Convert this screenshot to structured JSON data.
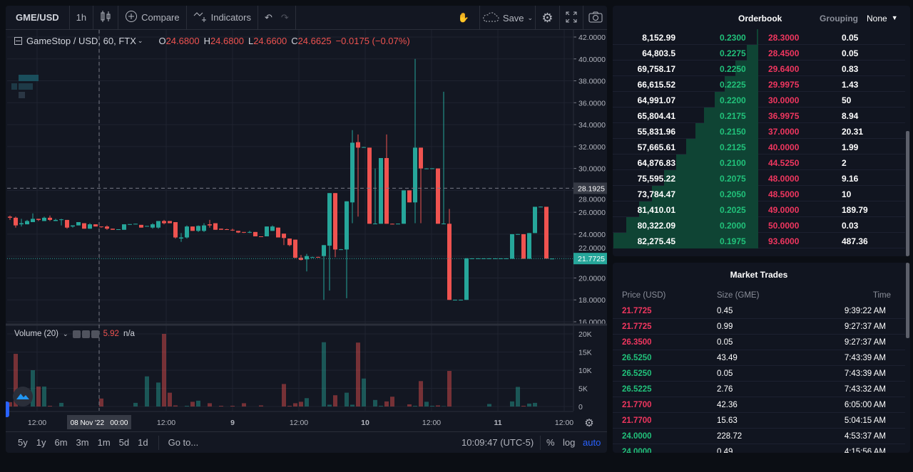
{
  "toolbar": {
    "symbol": "GME/USD",
    "interval": "1h",
    "compare": "Compare",
    "indicators": "Indicators",
    "save": "Save"
  },
  "legend": {
    "title": "GameStop / USD, 60, FTX",
    "o_label": "O",
    "o": "24.6800",
    "h_label": "H",
    "h": "24.6800",
    "l_label": "L",
    "l": "24.6600",
    "c_label": "C",
    "c": "24.6625",
    "change": "−0.0175 (−0.07%)"
  },
  "volume_legend": {
    "title": "Volume (20)",
    "value": "5.92",
    "extra": "n/a"
  },
  "colors": {
    "up": "#26a69a",
    "down": "#ef5350",
    "bid": "#21c17a",
    "ask": "#f0365f",
    "accent": "#2962ff"
  },
  "price_axis": {
    "ticks": [
      "42.0000",
      "40.0000",
      "38.0000",
      "36.0000",
      "34.0000",
      "32.0000",
      "30.0000",
      "28.0000",
      "26.0000",
      "24.0000",
      "22.0000",
      "20.0000",
      "18.0000",
      "16.0000"
    ],
    "crosshair": "28.1925",
    "last": "21.7725"
  },
  "volume_axis": {
    "ticks": [
      "20K",
      "15K",
      "10K",
      "5K",
      "0"
    ]
  },
  "time_axis": {
    "labels": [
      "12:00",
      "12:00",
      "9",
      "12:00",
      "10",
      "12:00",
      "11",
      "12:00"
    ],
    "crosshair": "08 Nov '22   00:00"
  },
  "chart": {
    "candles": [
      [
        25.6,
        25.7,
        25.3,
        25.5,
        1200
      ],
      [
        25.5,
        25.6,
        24.6,
        24.8,
        14500
      ],
      [
        24.9,
        25.4,
        24.7,
        25.0,
        0
      ],
      [
        24.9,
        25.3,
        24.9,
        25.2,
        0
      ],
      [
        25.1,
        25.9,
        25.1,
        25.4,
        10000
      ],
      [
        25.4,
        25.4,
        25.2,
        25.3,
        5500
      ],
      [
        25.2,
        25.6,
        25.2,
        25.5,
        5500
      ],
      [
        25.5,
        25.7,
        25.2,
        25.3,
        200
      ],
      [
        25.2,
        25.4,
        25.2,
        25.3,
        0
      ],
      [
        25.3,
        25.4,
        24.8,
        25.35,
        1000
      ],
      [
        25.3,
        25.3,
        24.5,
        24.6,
        0
      ],
      [
        24.7,
        24.8,
        24.6,
        24.8,
        0
      ],
      [
        24.8,
        25.1,
        24.8,
        25.1,
        0
      ],
      [
        25.0,
        25.0,
        24.5,
        24.5,
        0
      ],
      [
        24.5,
        25.0,
        24.5,
        24.9,
        0
      ],
      [
        24.9,
        24.9,
        24.7,
        24.7,
        0
      ],
      [
        24.7,
        24.7,
        24.6,
        24.65,
        2200
      ],
      [
        24.7,
        24.8,
        24.4,
        24.5,
        0
      ],
      [
        24.5,
        24.5,
        24.4,
        24.4,
        0
      ],
      [
        24.4,
        24.45,
        24.4,
        24.45,
        0
      ],
      [
        24.4,
        24.9,
        24.4,
        24.9,
        0
      ],
      [
        24.9,
        24.9,
        24.85,
        24.92,
        0
      ],
      [
        24.9,
        24.95,
        24.9,
        24.95,
        1000
      ],
      [
        24.85,
        24.85,
        24.6,
        24.6,
        0
      ],
      [
        24.7,
        24.75,
        24.7,
        24.75,
        8300
      ],
      [
        24.6,
        25.0,
        24.5,
        24.9,
        0
      ],
      [
        24.6,
        25.1,
        24.5,
        25.2,
        6600
      ],
      [
        25.2,
        25.3,
        24.9,
        25.0,
        20000
      ],
      [
        25.2,
        25.2,
        25.0,
        25.0,
        3800
      ],
      [
        25.1,
        25.1,
        23.6,
        23.7,
        300
      ],
      [
        23.6,
        24.1,
        23.3,
        23.7,
        0
      ],
      [
        23.7,
        24.8,
        23.6,
        24.7,
        200
      ],
      [
        24.7,
        24.7,
        24.3,
        24.3,
        1300
      ],
      [
        24.3,
        24.8,
        24.2,
        24.75,
        1600
      ],
      [
        24.3,
        25.0,
        24.2,
        24.8,
        0
      ],
      [
        24.9,
        25.3,
        24.6,
        24.8,
        900
      ],
      [
        25.0,
        25.0,
        24.4,
        24.4,
        0
      ],
      [
        24.5,
        24.5,
        24.4,
        24.4,
        200
      ],
      [
        24.45,
        24.5,
        24.4,
        24.4,
        0
      ],
      [
        24.4,
        24.5,
        24.3,
        24.35,
        200
      ],
      [
        24.3,
        24.3,
        24.1,
        24.15,
        0
      ],
      [
        24.2,
        24.2,
        24.1,
        24.15,
        900
      ],
      [
        24.2,
        24.3,
        24.1,
        24.2,
        0
      ],
      [
        24.2,
        24.2,
        23.8,
        23.8,
        0
      ],
      [
        23.8,
        23.8,
        23.75,
        23.78,
        300
      ],
      [
        23.8,
        24.7,
        23.8,
        24.7,
        0
      ],
      [
        24.3,
        24.8,
        24.3,
        24.7,
        0
      ],
      [
        24.6,
        24.6,
        23.7,
        23.7,
        0
      ],
      [
        24.05,
        24.05,
        23.0,
        23.65,
        6200
      ],
      [
        23.6,
        23.6,
        22.9,
        23.0,
        200
      ],
      [
        23.5,
        23.5,
        21.8,
        21.85,
        900
      ],
      [
        21.85,
        22.1,
        21.6,
        21.65,
        1300
      ],
      [
        21.7,
        22.2,
        20.6,
        22.0,
        2300
      ],
      [
        21.9,
        21.95,
        21.85,
        21.9,
        0
      ],
      [
        21.92,
        21.95,
        21.88,
        21.9,
        0
      ],
      [
        22.0,
        23.0,
        18.0,
        23.0,
        17700
      ],
      [
        22.95,
        27.75,
        18.85,
        27.75,
        500
      ],
      [
        27.75,
        27.75,
        21.9,
        22.6,
        3100
      ],
      [
        22.6,
        22.65,
        22.6,
        22.62,
        0
      ],
      [
        22.6,
        27.0,
        18.15,
        27.0,
        3800
      ],
      [
        26.9,
        33.5,
        25.0,
        32.35,
        500
      ],
      [
        32.4,
        33.1,
        25.6,
        31.9,
        17600
      ],
      [
        31.95,
        31.97,
        31.9,
        31.95,
        7700
      ],
      [
        31.9,
        31.9,
        24.95,
        24.95,
        0
      ],
      [
        24.95,
        30.0,
        24.95,
        24.97,
        1800
      ],
      [
        24.95,
        30.95,
        24.95,
        30.95,
        200
      ],
      [
        30.95,
        33.1,
        24.95,
        24.95,
        1400
      ],
      [
        24.95,
        24.97,
        24.93,
        24.94,
        2700
      ],
      [
        24.95,
        24.97,
        24.93,
        24.96,
        0
      ],
      [
        24.95,
        28.0,
        24.95,
        28.0,
        0
      ],
      [
        28.0,
        28.0,
        26.9,
        26.9,
        600
      ],
      [
        26.9,
        40.0,
        25.0,
        31.9,
        200
      ],
      [
        31.9,
        31.9,
        25.0,
        30.0,
        7000
      ],
      [
        30.0,
        30.02,
        29.98,
        30.0,
        1300
      ],
      [
        30.0,
        30.02,
        29.98,
        30.01,
        200
      ],
      [
        30.0,
        30.0,
        24.95,
        24.95,
        300
      ],
      [
        24.95,
        37.0,
        24.9,
        24.97,
        100
      ],
      [
        24.95,
        26.3,
        18.0,
        18.0,
        9800
      ],
      [
        18.0,
        18.02,
        17.98,
        18.01,
        0
      ],
      [
        18.0,
        18.02,
        17.98,
        18.01,
        0
      ],
      [
        18.0,
        21.8,
        18.0,
        21.8,
        0
      ],
      [
        21.78,
        21.8,
        21.76,
        21.79,
        0
      ],
      [
        21.78,
        21.8,
        21.76,
        21.79,
        0
      ],
      [
        21.78,
        21.8,
        21.76,
        21.79,
        0
      ],
      [
        21.78,
        21.8,
        21.76,
        21.79,
        700
      ],
      [
        21.78,
        21.8,
        21.76,
        21.79,
        0
      ],
      [
        21.78,
        21.8,
        21.76,
        21.79,
        0
      ],
      [
        21.78,
        21.8,
        21.76,
        21.79,
        0
      ],
      [
        21.75,
        24.0,
        21.75,
        24.0,
        1400
      ],
      [
        24.0,
        24.02,
        23.98,
        24.01,
        5400
      ],
      [
        24.0,
        24.0,
        21.75,
        21.75,
        200
      ],
      [
        21.75,
        24.1,
        21.75,
        24.1,
        800
      ],
      [
        24.1,
        26.5,
        24.1,
        26.5,
        1000
      ],
      [
        26.5,
        26.52,
        26.48,
        26.51,
        0
      ],
      [
        26.5,
        26.5,
        21.77,
        21.77,
        0
      ],
      [
        21.77,
        21.78,
        21.76,
        21.77,
        0
      ]
    ]
  },
  "bottombar": {
    "ranges": [
      "5y",
      "1y",
      "6m",
      "3m",
      "1m",
      "5d",
      "1d"
    ],
    "goto": "Go to...",
    "time": "10:09:47 (UTC-5)",
    "percent": "%",
    "log": "log",
    "auto": "auto"
  },
  "orderbook": {
    "title": "Orderbook",
    "grouping_label": "Grouping",
    "grouping_value": "None",
    "rows": [
      {
        "bid_size": "8,152.99",
        "bid": "0.2300",
        "ask": "28.3000",
        "ask_size": "0.05",
        "depth": 8152.99
      },
      {
        "bid_size": "64,803.5",
        "bid": "0.2275",
        "ask": "28.4500",
        "ask_size": "0.05",
        "depth": 64803.5
      },
      {
        "bid_size": "69,758.17",
        "bid": "0.2250",
        "ask": "29.6400",
        "ask_size": "0.83",
        "depth": 69758.17
      },
      {
        "bid_size": "66,615.52",
        "bid": "0.2225",
        "ask": "29.9975",
        "ask_size": "1.43",
        "depth": 66615.52
      },
      {
        "bid_size": "64,991.07",
        "bid": "0.2200",
        "ask": "30.0000",
        "ask_size": "50",
        "depth": 64991.07
      },
      {
        "bid_size": "65,804.41",
        "bid": "0.2175",
        "ask": "36.9975",
        "ask_size": "8.94",
        "depth": 65804.41
      },
      {
        "bid_size": "55,831.96",
        "bid": "0.2150",
        "ask": "37.0000",
        "ask_size": "20.31",
        "depth": 55831.96
      },
      {
        "bid_size": "57,665.61",
        "bid": "0.2125",
        "ask": "40.0000",
        "ask_size": "1.99",
        "depth": 57665.61
      },
      {
        "bid_size": "64,876.83",
        "bid": "0.2100",
        "ask": "44.5250",
        "ask_size": "2",
        "depth": 64876.83
      },
      {
        "bid_size": "75,595.22",
        "bid": "0.2075",
        "ask": "48.0000",
        "ask_size": "9.16",
        "depth": 75595.22
      },
      {
        "bid_size": "73,784.47",
        "bid": "0.2050",
        "ask": "48.5000",
        "ask_size": "10",
        "depth": 73784.47
      },
      {
        "bid_size": "81,410.01",
        "bid": "0.2025",
        "ask": "49.0000",
        "ask_size": "189.79",
        "depth": 81410.01
      },
      {
        "bid_size": "80,322.09",
        "bid": "0.2000",
        "ask": "50.0000",
        "ask_size": "0.03",
        "depth": 80322.09
      },
      {
        "bid_size": "82,275.45",
        "bid": "0.1975",
        "ask": "93.6000",
        "ask_size": "487.36",
        "depth": 82275.45
      }
    ]
  },
  "market_trades": {
    "title": "Market Trades",
    "headers": [
      "Price (USD)",
      "Size (GME)",
      "Time"
    ],
    "rows": [
      {
        "price": "21.7725",
        "size": "0.45",
        "time": "9:39:22 AM",
        "side": "sell"
      },
      {
        "price": "21.7725",
        "size": "0.99",
        "time": "9:27:37 AM",
        "side": "sell"
      },
      {
        "price": "26.3500",
        "size": "0.05",
        "time": "9:27:37 AM",
        "side": "sell"
      },
      {
        "price": "26.5250",
        "size": "43.49",
        "time": "7:43:39 AM",
        "side": "buy"
      },
      {
        "price": "26.5250",
        "size": "0.05",
        "time": "7:43:39 AM",
        "side": "buy"
      },
      {
        "price": "26.5225",
        "size": "2.76",
        "time": "7:43:32 AM",
        "side": "buy"
      },
      {
        "price": "21.7700",
        "size": "42.36",
        "time": "6:05:00 AM",
        "side": "sell"
      },
      {
        "price": "21.7700",
        "size": "15.63",
        "time": "5:04:15 AM",
        "side": "sell"
      },
      {
        "price": "24.0000",
        "size": "228.72",
        "time": "4:53:37 AM",
        "side": "buy"
      },
      {
        "price": "24.0000",
        "size": "0.49",
        "time": "4:15:56 AM",
        "side": "buy"
      }
    ]
  }
}
